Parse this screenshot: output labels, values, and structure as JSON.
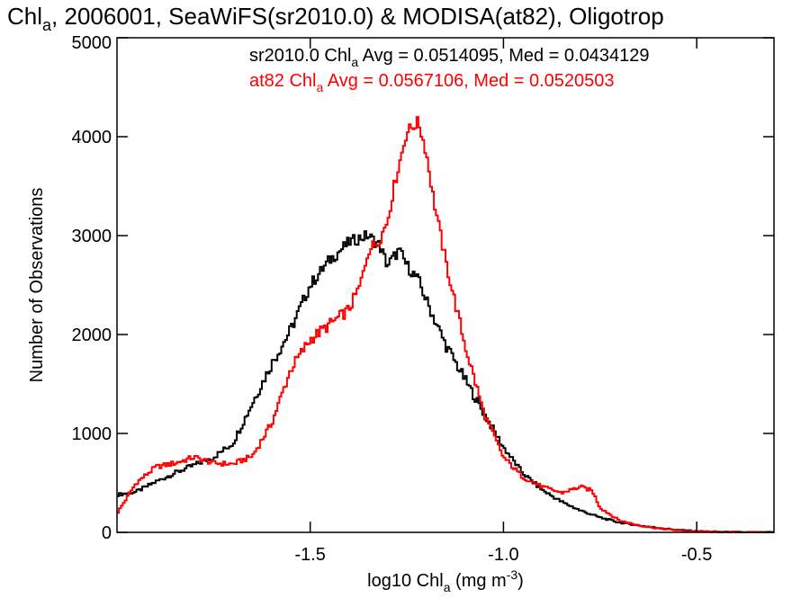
{
  "chart_data": {
    "type": "line",
    "title": {
      "prefix": "Chl",
      "sub": "a",
      "rest": ", 2006001, SeaWiFS(sr2010.0) & MODISA(at82), Oligotrop"
    },
    "xlabel": {
      "prefix": "log10 Chl",
      "sub": "a",
      "mid": " (mg m",
      "sup": "-3",
      "end": ")"
    },
    "ylabel": "Number of Observations",
    "xlim": [
      -2.0,
      -0.3
    ],
    "ylim": [
      0,
      5000
    ],
    "xticks": [
      {
        "value": -1.5,
        "label": "-1.5"
      },
      {
        "value": -1.0,
        "label": "-1.0"
      },
      {
        "value": -0.5,
        "label": "-0.5"
      }
    ],
    "yticks": [
      {
        "value": 0,
        "label": "0"
      },
      {
        "value": 1000,
        "label": "1000"
      },
      {
        "value": 2000,
        "label": "2000"
      },
      {
        "value": 3000,
        "label": "3000"
      },
      {
        "value": 4000,
        "label": "4000"
      },
      {
        "value": 5000,
        "label": "5000"
      }
    ],
    "grid": false,
    "legend_position": "top-right",
    "series": [
      {
        "name": "sr2010.0",
        "color": "#000000",
        "legend": {
          "prefix": "sr2010.0 Chl",
          "sub": "a",
          "rest": " Avg = 0.0514095, Med = 0.0434129"
        },
        "x": [
          -2.0,
          -1.95,
          -1.9,
          -1.85,
          -1.8,
          -1.75,
          -1.7,
          -1.65,
          -1.6,
          -1.55,
          -1.5,
          -1.45,
          -1.4,
          -1.37,
          -1.35,
          -1.32,
          -1.3,
          -1.27,
          -1.25,
          -1.22,
          -1.2,
          -1.15,
          -1.1,
          -1.05,
          -1.0,
          -0.95,
          -0.9,
          -0.85,
          -0.8,
          -0.75,
          -0.7,
          -0.65,
          -0.6,
          -0.55,
          -0.5,
          -0.45,
          -0.4,
          -0.35,
          -0.3
        ],
        "y": [
          380,
          410,
          510,
          600,
          680,
          760,
          900,
          1300,
          1700,
          2050,
          2500,
          2750,
          2930,
          2980,
          3000,
          2900,
          2700,
          2850,
          2700,
          2550,
          2350,
          1900,
          1550,
          1200,
          860,
          600,
          430,
          310,
          220,
          150,
          100,
          70,
          45,
          25,
          12,
          6,
          3,
          1,
          0
        ]
      },
      {
        "name": "at82",
        "color": "#ff0000",
        "legend": {
          "prefix": "at82 Chl",
          "sub": "a",
          "rest": " Avg = 0.0567106, Med = 0.0520503"
        },
        "x": [
          -2.0,
          -1.95,
          -1.9,
          -1.85,
          -1.8,
          -1.75,
          -1.7,
          -1.65,
          -1.6,
          -1.55,
          -1.5,
          -1.45,
          -1.4,
          -1.37,
          -1.35,
          -1.32,
          -1.3,
          -1.28,
          -1.25,
          -1.22,
          -1.2,
          -1.18,
          -1.15,
          -1.1,
          -1.05,
          -1.0,
          -0.95,
          -0.9,
          -0.85,
          -0.8,
          -0.77,
          -0.75,
          -0.7,
          -0.65,
          -0.6,
          -0.55,
          -0.5,
          -0.45,
          -0.4,
          -0.35,
          -0.3
        ],
        "y": [
          190,
          500,
          660,
          700,
          760,
          700,
          690,
          770,
          1100,
          1650,
          1950,
          2100,
          2250,
          2500,
          2850,
          2960,
          3150,
          3550,
          4050,
          4150,
          3850,
          3350,
          2750,
          1900,
          1200,
          760,
          560,
          460,
          400,
          460,
          420,
          250,
          120,
          70,
          40,
          20,
          10,
          5,
          2,
          1,
          0
        ]
      }
    ]
  }
}
